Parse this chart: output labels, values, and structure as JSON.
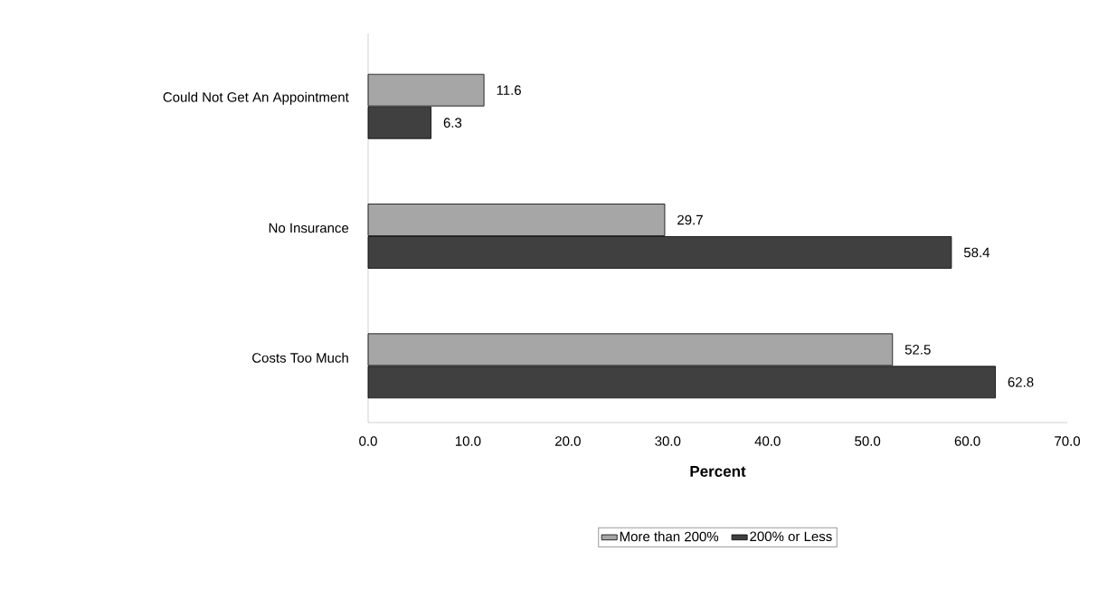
{
  "chart_data": {
    "type": "bar",
    "orientation": "horizontal",
    "xlabel": "Percent",
    "categories": [
      "Could Not Get An Appointment",
      "No Insurance",
      "Costs Too Much"
    ],
    "series": [
      {
        "name": "More than 200%",
        "color": "#a6a6a6",
        "values": [
          11.6,
          29.7,
          52.5
        ]
      },
      {
        "name": "200% or Less",
        "color": "#404040",
        "values": [
          6.3,
          58.4,
          62.8
        ]
      }
    ],
    "xlim": [
      0,
      70
    ],
    "xticks": [
      {
        "value": 0,
        "label": "0.0"
      },
      {
        "value": 10,
        "label": "10.0"
      },
      {
        "value": 20,
        "label": "20.0"
      },
      {
        "value": 30,
        "label": "30.0"
      },
      {
        "value": 40,
        "label": "40.0"
      },
      {
        "value": 50,
        "label": "50.0"
      },
      {
        "value": 60,
        "label": "60.0"
      },
      {
        "value": 70,
        "label": "70.0"
      }
    ],
    "data_labels": true,
    "grid": false,
    "legend": "bottom"
  }
}
